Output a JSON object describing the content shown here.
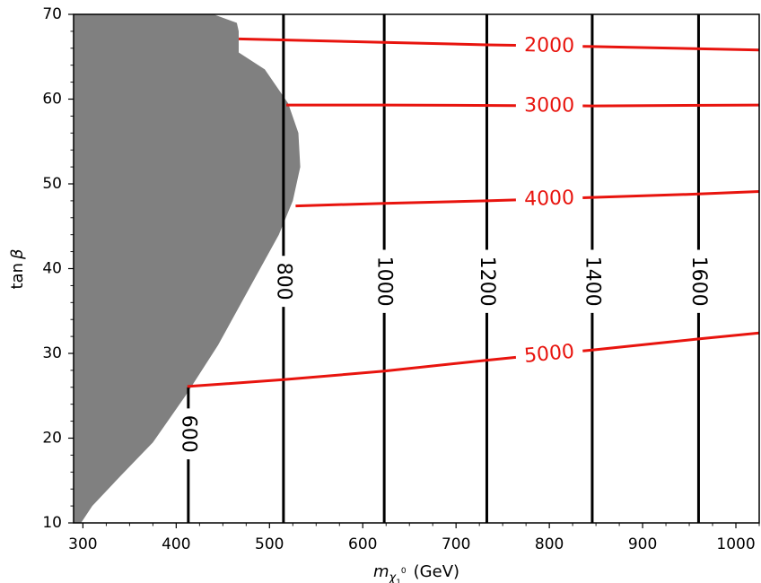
{
  "chart_data": {
    "type": "contour",
    "xlabel_sym": "m",
    "xlabel_sub": "χ",
    "xlabel_subsub": "1",
    "xlabel_sup": "0",
    "xlabel_unit": "(GeV)",
    "ylabel_pre": "tan",
    "ylabel_sym": "β",
    "xlim": [
      290,
      1025
    ],
    "ylim": [
      10,
      70
    ],
    "xticks": [
      300,
      400,
      500,
      600,
      700,
      800,
      900,
      1000
    ],
    "yticks": [
      10,
      20,
      30,
      40,
      50,
      60,
      70
    ],
    "colors": {
      "excluded": "#808080",
      "vertical": "#000000",
      "horizontal": "#e8140e"
    },
    "excluded_region": [
      [
        290,
        10
      ],
      [
        298,
        10
      ],
      [
        310,
        12
      ],
      [
        340,
        15.5
      ],
      [
        375,
        19.5
      ],
      [
        410,
        25
      ],
      [
        445,
        31
      ],
      [
        480,
        38
      ],
      [
        510,
        44
      ],
      [
        525,
        48
      ],
      [
        533,
        52
      ],
      [
        531,
        56
      ],
      [
        520,
        59.5
      ],
      [
        495,
        63.5
      ],
      [
        467,
        65.5
      ],
      [
        467,
        68
      ],
      [
        465,
        69
      ],
      [
        440,
        70
      ],
      [
        290,
        70
      ]
    ],
    "vertical_contours": [
      {
        "label": "600",
        "x": 413,
        "ymin": 10,
        "ymax": 26,
        "label_y": 20.5
      },
      {
        "label": "800",
        "x": 515,
        "ymin": 10,
        "ymax": 70,
        "label_y": 38.5
      },
      {
        "label": "1000",
        "x": 623,
        "ymin": 10,
        "ymax": 70,
        "label_y": 38.5
      },
      {
        "label": "1200",
        "x": 733,
        "ymin": 10,
        "ymax": 70,
        "label_y": 38.5
      },
      {
        "label": "1400",
        "x": 846,
        "ymin": 10,
        "ymax": 70,
        "label_y": 38.5
      },
      {
        "label": "1600",
        "x": 960,
        "ymin": 10,
        "ymax": 70,
        "label_y": 38.5
      }
    ],
    "horizontal_contours": [
      {
        "label": "2000",
        "points": [
          [
            467,
            67.1
          ],
          [
            623,
            66.7
          ],
          [
            733,
            66.4
          ],
          [
            846,
            66.2
          ],
          [
            1025,
            65.8
          ]
        ],
        "label_x": 800
      },
      {
        "label": "3000",
        "points": [
          [
            518,
            59.3
          ],
          [
            623,
            59.3
          ],
          [
            846,
            59.2
          ],
          [
            1025,
            59.3
          ]
        ],
        "label_x": 800
      },
      {
        "label": "4000",
        "points": [
          [
            528,
            47.4
          ],
          [
            623,
            47.7
          ],
          [
            733,
            48.0
          ],
          [
            846,
            48.4
          ],
          [
            960,
            48.8
          ],
          [
            1025,
            49.1
          ]
        ],
        "label_x": 800
      },
      {
        "label": "5000",
        "points": [
          [
            412,
            26.1
          ],
          [
            515,
            26.9
          ],
          [
            623,
            27.9
          ],
          [
            733,
            29.2
          ],
          [
            846,
            30.4
          ],
          [
            960,
            31.7
          ],
          [
            1025,
            32.4
          ]
        ],
        "label_x": 800
      }
    ]
  }
}
